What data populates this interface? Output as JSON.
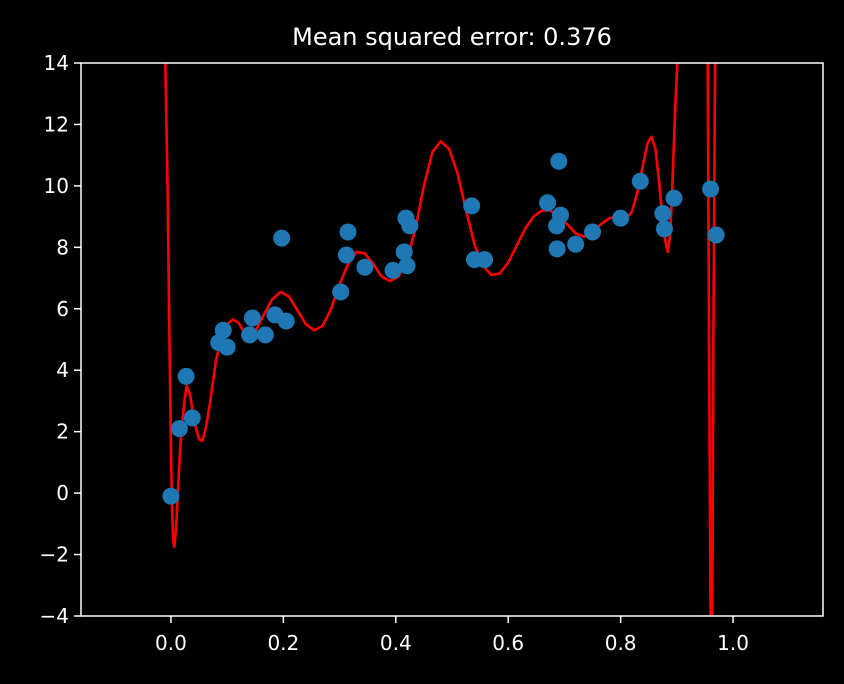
{
  "chart_data": {
    "type": "scatter",
    "title": "Mean squared error: 0.376",
    "xlabel": "",
    "ylabel": "",
    "xlim": [
      -0.16,
      1.16
    ],
    "ylim": [
      -4,
      14
    ],
    "x_ticks": [
      "0.0",
      "0.2",
      "0.4",
      "0.6",
      "0.8",
      "1.0"
    ],
    "y_ticks": [
      "−4",
      "−2",
      "0",
      "2",
      "4",
      "6",
      "8",
      "10",
      "12",
      "14"
    ],
    "grid": false,
    "background": "#000000",
    "axis_color": "#ffffff",
    "series": [
      {
        "kind": "scatter",
        "color": "#1f77b4",
        "points": [
          [
            0.0,
            -0.1
          ],
          [
            0.015,
            2.1
          ],
          [
            0.027,
            3.8
          ],
          [
            0.038,
            2.45
          ],
          [
            0.085,
            4.9
          ],
          [
            0.093,
            5.3
          ],
          [
            0.1,
            4.75
          ],
          [
            0.14,
            5.15
          ],
          [
            0.145,
            5.7
          ],
          [
            0.168,
            5.15
          ],
          [
            0.185,
            5.8
          ],
          [
            0.197,
            8.3
          ],
          [
            0.205,
            5.6
          ],
          [
            0.302,
            6.55
          ],
          [
            0.312,
            7.75
          ],
          [
            0.315,
            8.5
          ],
          [
            0.345,
            7.35
          ],
          [
            0.395,
            7.25
          ],
          [
            0.415,
            7.85
          ],
          [
            0.418,
            8.95
          ],
          [
            0.42,
            7.4
          ],
          [
            0.425,
            8.7
          ],
          [
            0.535,
            9.35
          ],
          [
            0.54,
            7.6
          ],
          [
            0.558,
            7.6
          ],
          [
            0.67,
            9.45
          ],
          [
            0.686,
            8.7
          ],
          [
            0.687,
            7.95
          ],
          [
            0.69,
            10.8
          ],
          [
            0.693,
            9.05
          ],
          [
            0.72,
            8.1
          ],
          [
            0.75,
            8.5
          ],
          [
            0.8,
            8.95
          ],
          [
            0.835,
            10.15
          ],
          [
            0.875,
            9.1
          ],
          [
            0.878,
            8.6
          ],
          [
            0.895,
            9.6
          ],
          [
            0.96,
            9.9
          ],
          [
            0.97,
            8.4
          ]
        ]
      },
      {
        "kind": "line",
        "color": "#ff0000",
        "points": [
          [
            -0.01,
            14
          ],
          [
            -0.006,
            10.0
          ],
          [
            -0.003,
            5.5
          ],
          [
            0.0,
            1.5
          ],
          [
            0.002,
            -0.5
          ],
          [
            0.004,
            -1.5
          ],
          [
            0.006,
            -1.75
          ],
          [
            0.009,
            -1.2
          ],
          [
            0.013,
            0.3
          ],
          [
            0.018,
            1.9
          ],
          [
            0.024,
            3.0
          ],
          [
            0.028,
            3.5
          ],
          [
            0.034,
            3.2
          ],
          [
            0.042,
            2.3
          ],
          [
            0.05,
            1.75
          ],
          [
            0.056,
            1.7
          ],
          [
            0.062,
            2.1
          ],
          [
            0.07,
            3.0
          ],
          [
            0.08,
            4.3
          ],
          [
            0.09,
            5.1
          ],
          [
            0.1,
            5.5
          ],
          [
            0.11,
            5.65
          ],
          [
            0.12,
            5.55
          ],
          [
            0.13,
            5.25
          ],
          [
            0.14,
            5.1
          ],
          [
            0.15,
            5.25
          ],
          [
            0.165,
            5.8
          ],
          [
            0.18,
            6.3
          ],
          [
            0.195,
            6.55
          ],
          [
            0.21,
            6.4
          ],
          [
            0.225,
            5.95
          ],
          [
            0.24,
            5.5
          ],
          [
            0.255,
            5.3
          ],
          [
            0.27,
            5.45
          ],
          [
            0.285,
            6.0
          ],
          [
            0.3,
            6.8
          ],
          [
            0.315,
            7.45
          ],
          [
            0.33,
            7.85
          ],
          [
            0.345,
            7.8
          ],
          [
            0.36,
            7.45
          ],
          [
            0.375,
            7.05
          ],
          [
            0.39,
            6.9
          ],
          [
            0.405,
            7.05
          ],
          [
            0.42,
            7.6
          ],
          [
            0.435,
            8.6
          ],
          [
            0.45,
            10.0
          ],
          [
            0.465,
            11.1
          ],
          [
            0.48,
            11.45
          ],
          [
            0.495,
            11.2
          ],
          [
            0.51,
            10.4
          ],
          [
            0.525,
            9.2
          ],
          [
            0.54,
            8.1
          ],
          [
            0.555,
            7.4
          ],
          [
            0.57,
            7.1
          ],
          [
            0.585,
            7.15
          ],
          [
            0.6,
            7.5
          ],
          [
            0.615,
            8.05
          ],
          [
            0.63,
            8.6
          ],
          [
            0.645,
            9.0
          ],
          [
            0.66,
            9.2
          ],
          [
            0.675,
            9.2
          ],
          [
            0.69,
            9.0
          ],
          [
            0.705,
            8.75
          ],
          [
            0.72,
            8.45
          ],
          [
            0.735,
            8.35
          ],
          [
            0.75,
            8.5
          ],
          [
            0.765,
            8.75
          ],
          [
            0.78,
            8.95
          ],
          [
            0.795,
            9.0
          ],
          [
            0.81,
            8.95
          ],
          [
            0.82,
            9.15
          ],
          [
            0.83,
            9.8
          ],
          [
            0.84,
            10.7
          ],
          [
            0.848,
            11.4
          ],
          [
            0.855,
            11.6
          ],
          [
            0.862,
            11.2
          ],
          [
            0.868,
            10.2
          ],
          [
            0.874,
            9.0
          ],
          [
            0.88,
            8.15
          ],
          [
            0.884,
            7.85
          ],
          [
            0.888,
            8.4
          ],
          [
            0.892,
            10.0
          ],
          [
            0.897,
            12.5
          ],
          [
            0.901,
            14
          ]
        ]
      },
      {
        "kind": "line",
        "color": "#ff0000",
        "points": [
          [
            0.955,
            14
          ],
          [
            0.957,
            6.0
          ],
          [
            0.96,
            -4
          ]
        ]
      },
      {
        "kind": "line",
        "color": "#ff0000",
        "points": [
          [
            0.963,
            -4
          ],
          [
            0.965,
            5.0
          ],
          [
            0.968,
            14
          ]
        ]
      }
    ]
  }
}
